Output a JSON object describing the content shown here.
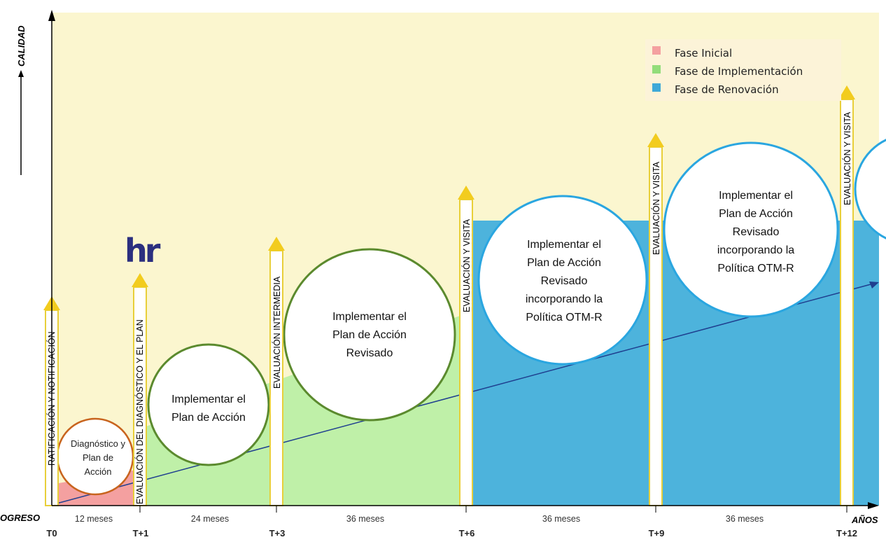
{
  "axes": {
    "y_label": "CALIDAD",
    "x_label": "AÑOS",
    "origin_label": "OGRESO"
  },
  "ticks": [
    "T0",
    "T+1",
    "T+3",
    "T+6",
    "T+9",
    "T+12"
  ],
  "durations": [
    "12 meses",
    "24 meses",
    "36 meses",
    "36 meses",
    "36 meses"
  ],
  "legend": [
    {
      "label": "Fase Inicial",
      "color": "#f4a0a0"
    },
    {
      "label": "Fase de Implementación",
      "color": "#93dd7a"
    },
    {
      "label": "Fase de Renovación",
      "color": "#3fa9d8"
    }
  ],
  "pillars": [
    "RATIFICACIÓN Y NOTIFICACIÓN",
    "EVALUACIÓN DEL DIAGNÓSTICO Y EL PLAN",
    "EVALUACIÓN INTERMEDIA",
    "EVALUACIÓN Y VISITA",
    "EVALUACIÓN Y VISITA",
    "EVALUACIÓN Y VISITA"
  ],
  "circles": [
    {
      "lines": [
        "Diagnóstico y",
        "Plan de",
        "Acción"
      ]
    },
    {
      "lines": [
        "Implementar el",
        "Plan de Acción"
      ]
    },
    {
      "lines": [
        "Implementar el",
        "Plan de Acción",
        "Revisado"
      ]
    },
    {
      "lines": [
        "Implementar el",
        "Plan de Acción",
        "Revisado",
        "incorporando la",
        "Política OTM-R"
      ]
    },
    {
      "lines": [
        "Implementar el",
        "Plan de Acción",
        "Revisado",
        "incorporando la",
        "Política OTM-R"
      ]
    }
  ],
  "logo": "hr",
  "colors": {
    "background": "#fbf6cf",
    "initial": "#f4a0a0",
    "implementation": "#bff0a8",
    "renewal": "#4db3dc",
    "pillar_border": "#e8cf3a",
    "arrow": "#f2cc1e",
    "trend": "#1f3f8f",
    "logo": "#2b2f7f"
  }
}
